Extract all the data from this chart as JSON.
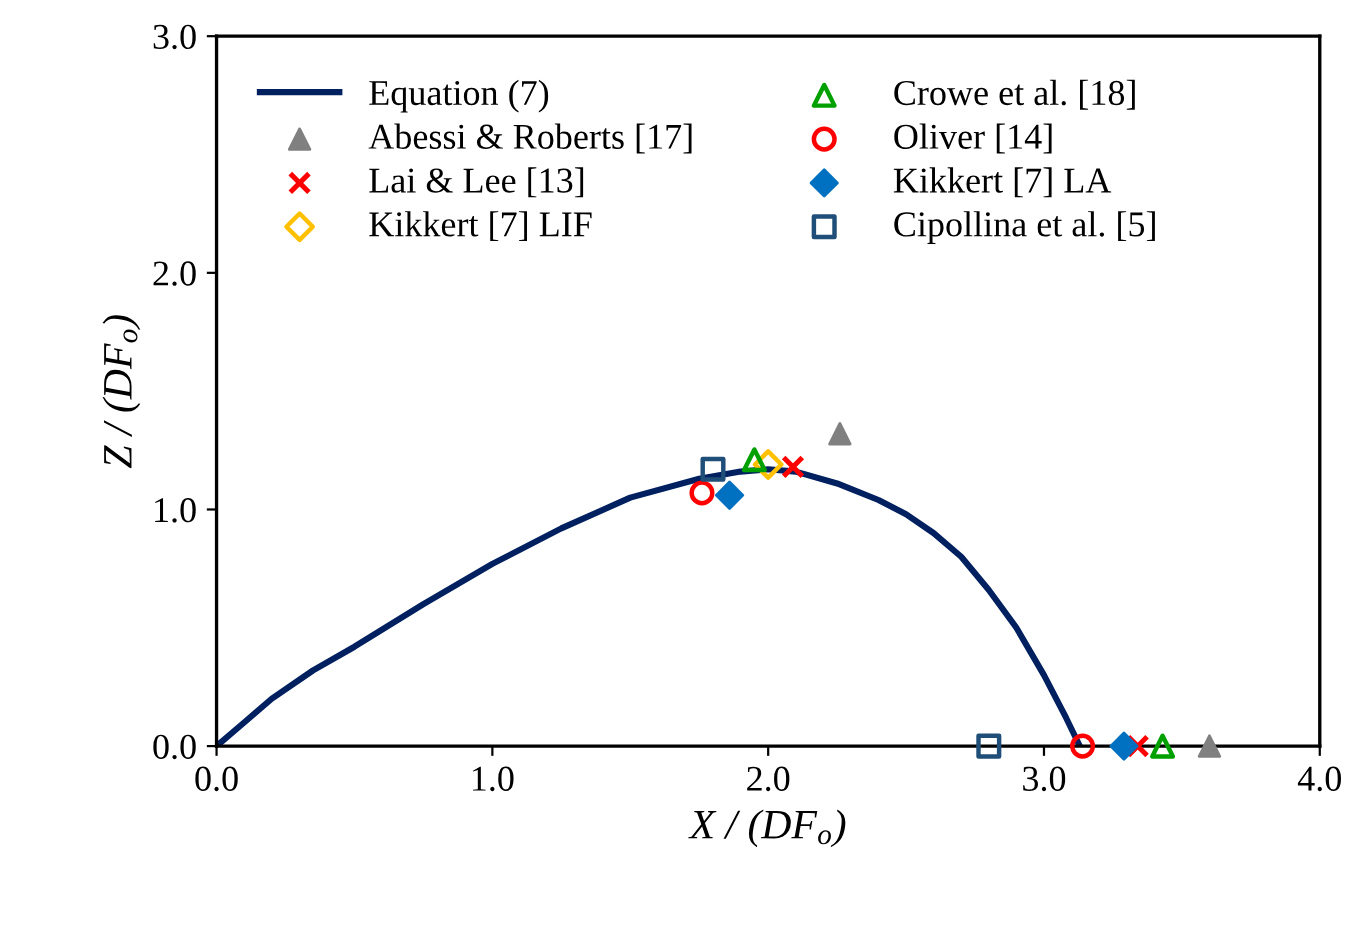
{
  "chart_data": {
    "type": "scatter",
    "xlabel": "X / (DF$_{o}$)",
    "ylabel": "Z / (DF$_{o}$)",
    "xlim": [
      0,
      4
    ],
    "ylim": [
      0,
      3
    ],
    "xticks": [
      {
        "value": 0,
        "label": "0.0"
      },
      {
        "value": 1,
        "label": "1.0"
      },
      {
        "value": 2,
        "label": "2.0"
      },
      {
        "value": 3,
        "label": "3.0"
      },
      {
        "value": 4,
        "label": "4.0"
      }
    ],
    "yticks": [
      {
        "value": 0,
        "label": "0.0"
      },
      {
        "value": 1,
        "label": "1.0"
      },
      {
        "value": 2,
        "label": "2.0"
      },
      {
        "value": 3,
        "label": "3.0"
      }
    ],
    "grid": false,
    "legend": "top left",
    "series": [
      {
        "name": "Equation (7)",
        "type": "line",
        "marker": "none",
        "line_style": "solid",
        "color": "#002060",
        "x": [
          0,
          0.1,
          0.2,
          0.35,
          0.5,
          0.75,
          1.0,
          1.25,
          1.5,
          1.75,
          1.9,
          2.0,
          2.1,
          2.25,
          2.4,
          2.5,
          2.6,
          2.7,
          2.8,
          2.9,
          3.0,
          3.08,
          3.13
        ],
        "values": [
          0,
          0.1,
          0.2,
          0.32,
          0.42,
          0.6,
          0.77,
          0.92,
          1.05,
          1.13,
          1.16,
          1.17,
          1.16,
          1.11,
          1.04,
          0.98,
          0.9,
          0.8,
          0.66,
          0.5,
          0.3,
          0.12,
          0
        ]
      },
      {
        "name": "Abessi & Roberts [17]",
        "marker": "triangle",
        "color": "#808080",
        "x": [
          2.26,
          3.6
        ],
        "values": [
          1.32,
          0
        ]
      },
      {
        "name": "Lai & Lee [13]",
        "marker": "cross",
        "color": "#ff0000",
        "x": [
          2.09,
          3.34
        ],
        "values": [
          1.18,
          0
        ]
      },
      {
        "name": "Kikkert [7] LIF",
        "marker": "diamond",
        "color": "#ffc000",
        "x": [
          2.0
        ],
        "values": [
          1.19
        ]
      },
      {
        "name": "Crowe et al. [18]",
        "marker": "triangle",
        "color": "#00a000",
        "x": [
          1.95,
          3.43
        ],
        "values": [
          1.21,
          0
        ]
      },
      {
        "name": "Oliver [14]",
        "marker": "circle",
        "color": "#ff0000",
        "x": [
          1.76,
          3.14
        ],
        "values": [
          1.07,
          0
        ]
      },
      {
        "name": "Kikkert [7] LA",
        "marker": "diamond",
        "color": "#0070c0",
        "x": [
          1.86,
          3.29
        ],
        "values": [
          1.06,
          0
        ]
      },
      {
        "name": "Cipollina et al. [5]",
        "marker": "square",
        "color": "#1f4e79",
        "x": [
          1.8,
          2.8
        ],
        "values": [
          1.17,
          0
        ]
      }
    ]
  }
}
